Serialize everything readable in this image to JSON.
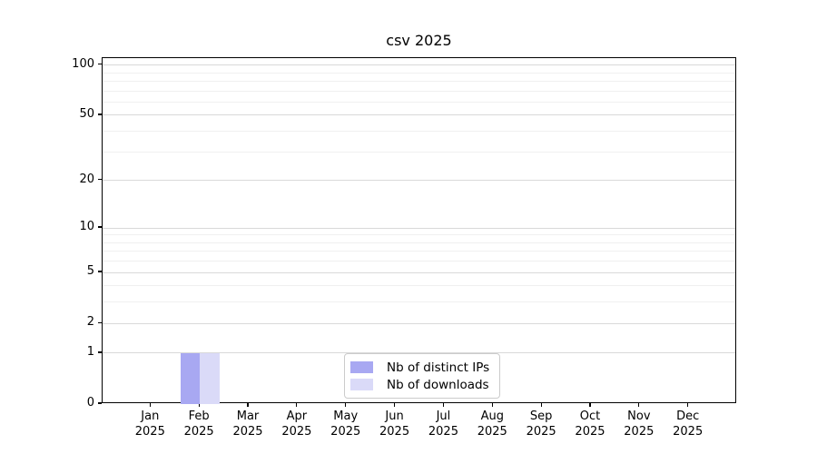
{
  "title": "csv 2025",
  "chart_data": {
    "type": "bar",
    "title": "csv 2025",
    "xlabel": "",
    "ylabel": "",
    "categories": [
      {
        "month": "Jan",
        "year": "2025"
      },
      {
        "month": "Feb",
        "year": "2025"
      },
      {
        "month": "Mar",
        "year": "2025"
      },
      {
        "month": "Apr",
        "year": "2025"
      },
      {
        "month": "May",
        "year": "2025"
      },
      {
        "month": "Jun",
        "year": "2025"
      },
      {
        "month": "Jul",
        "year": "2025"
      },
      {
        "month": "Aug",
        "year": "2025"
      },
      {
        "month": "Sep",
        "year": "2025"
      },
      {
        "month": "Oct",
        "year": "2025"
      },
      {
        "month": "Nov",
        "year": "2025"
      },
      {
        "month": "Dec",
        "year": "2025"
      }
    ],
    "series": [
      {
        "name": "Nb of distinct IPs",
        "color": "#a8a8f2",
        "values": [
          0,
          1,
          0,
          0,
          0,
          0,
          0,
          0,
          0,
          0,
          0,
          0
        ]
      },
      {
        "name": "Nb of downloads",
        "color": "#dadaf8",
        "values": [
          0,
          1,
          0,
          0,
          0,
          0,
          0,
          0,
          0,
          0,
          0,
          0
        ]
      }
    ],
    "y_axis": {
      "scale": "log1p",
      "ylim": [
        0,
        110
      ],
      "ticks_major": [
        0,
        1,
        2,
        5,
        10,
        20,
        50,
        100
      ],
      "ticks_minor": [
        3,
        4,
        6,
        7,
        8,
        9,
        30,
        40,
        60,
        70,
        80,
        90
      ]
    },
    "grid": {
      "major_color": "#d9d9d9",
      "minor_color": "#f0f0f0"
    },
    "legend": {
      "position": "lower center",
      "labels": [
        "Nb of distinct IPs",
        "Nb of downloads"
      ]
    }
  }
}
